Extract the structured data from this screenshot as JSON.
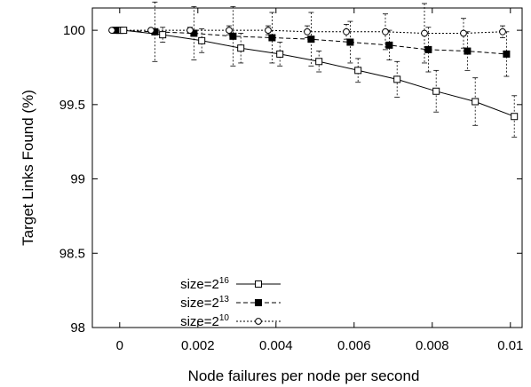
{
  "chart_data": {
    "type": "line",
    "title": "",
    "xlabel": "Node failures per node per second",
    "ylabel": "Target Links Found (%)",
    "xlim": [
      -0.0007,
      0.0103
    ],
    "ylim": [
      98,
      100.15
    ],
    "x_ticks": [
      0,
      0.002,
      0.004,
      0.006,
      0.008,
      0.01
    ],
    "x_tick_labels": [
      "0",
      "0.002",
      "0.004",
      "0.006",
      "0.008",
      "0.01"
    ],
    "y_ticks": [
      98,
      98.5,
      99,
      99.5,
      100
    ],
    "y_tick_labels": [
      "98",
      "98.5",
      "99",
      "99.5",
      "100"
    ],
    "grid": false,
    "legend_position": "bottom-left",
    "series": [
      {
        "name": "size=2^16",
        "legend_base": "size=2",
        "legend_exp": "16",
        "marker": "open-square",
        "line_style": "solid",
        "x": [
          0,
          0.0001,
          0.0011,
          0.0021,
          0.0031,
          0.0041,
          0.0051,
          0.0061,
          0.0071,
          0.0081,
          0.0091,
          0.0101
        ],
        "y": [
          100,
          100,
          99.97,
          99.93,
          99.88,
          99.84,
          99.79,
          99.73,
          99.67,
          99.59,
          99.52,
          99.42
        ],
        "err": [
          0,
          0,
          0.05,
          0.08,
          0.1,
          0.08,
          0.07,
          0.08,
          0.12,
          0.14,
          0.16,
          0.14
        ]
      },
      {
        "name": "size=2^13",
        "legend_base": "size=2",
        "legend_exp": "13",
        "marker": "filled-square",
        "line_style": "dashed",
        "x": [
          -0.0001,
          0.0009,
          0.0019,
          0.0029,
          0.0039,
          0.0049,
          0.0059,
          0.0069,
          0.0079,
          0.0089,
          0.0099
        ],
        "y": [
          100,
          99.99,
          99.98,
          99.96,
          99.95,
          99.94,
          99.92,
          99.9,
          99.87,
          99.86,
          99.84
        ],
        "err": [
          0,
          0.2,
          0.18,
          0.2,
          0.17,
          0.18,
          0.14,
          0.1,
          0.15,
          0.13,
          0.15
        ]
      },
      {
        "name": "size=2^10",
        "legend_base": "size=2",
        "legend_exp": "10",
        "marker": "open-circle",
        "line_style": "dotted",
        "x": [
          -0.0002,
          0.0008,
          0.0018,
          0.0028,
          0.0038,
          0.0048,
          0.0058,
          0.0068,
          0.0078,
          0.0088,
          0.0098
        ],
        "y": [
          100,
          100,
          100,
          100,
          100,
          99.99,
          99.99,
          99.99,
          99.98,
          99.98,
          99.99
        ],
        "err": [
          0,
          0,
          0.02,
          0.03,
          0.03,
          0.04,
          0.05,
          0.12,
          0.2,
          0.1,
          0.04
        ]
      }
    ]
  }
}
